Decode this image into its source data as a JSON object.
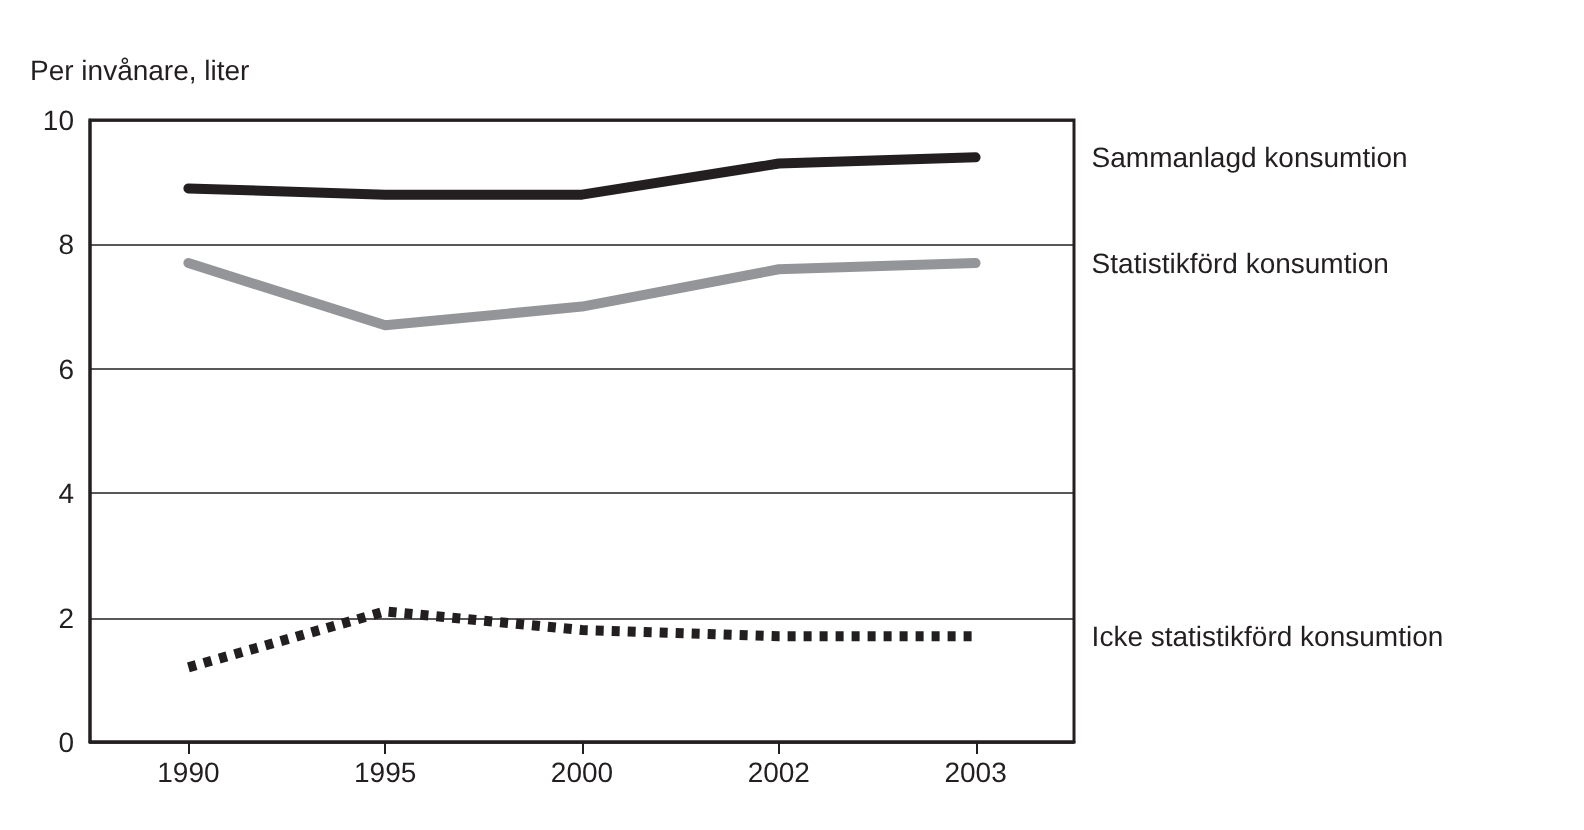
{
  "chart_data": {
    "type": "line",
    "ylabel": "Per invånare, liter",
    "categories": [
      "1990",
      "1995",
      "2000",
      "2002",
      "2003"
    ],
    "series": [
      {
        "name": "Sammanlagd konsumtion",
        "color": "#231f20",
        "values": [
          8.9,
          8.8,
          8.8,
          9.3,
          9.4
        ],
        "line_style": "solid"
      },
      {
        "name": "Statistikförd konsumtion",
        "color": "#939598",
        "values": [
          7.7,
          6.7,
          7.0,
          7.6,
          7.7
        ],
        "line_style": "solid"
      },
      {
        "name": "Icke statistikförd konsumtion",
        "color": "#231f20",
        "values": [
          1.2,
          2.1,
          1.8,
          1.7,
          1.7
        ],
        "line_style": "dotted"
      }
    ],
    "ylim": [
      0,
      10
    ],
    "yticks": [
      0,
      2,
      4,
      6,
      8,
      10
    ],
    "grid": "y",
    "legend": false,
    "marker": "none"
  }
}
